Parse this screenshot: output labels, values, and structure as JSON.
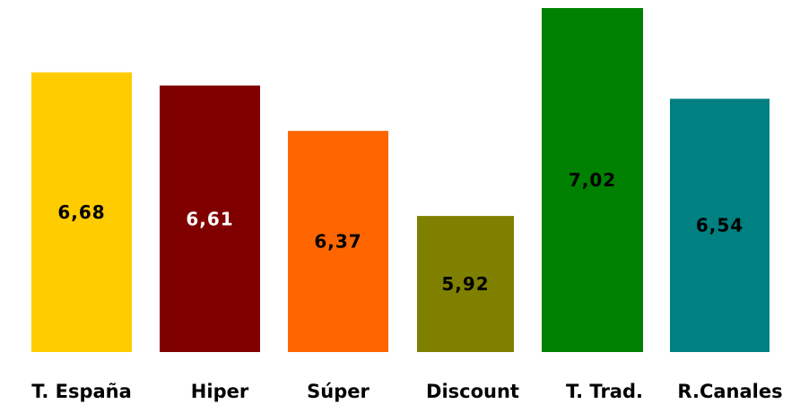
{
  "chart_data": {
    "type": "bar",
    "title": "",
    "xlabel": "",
    "ylabel": "",
    "categories": [
      "T. España",
      "Hiper",
      "Súper",
      "Discount",
      "T. Trad.",
      "R.Canales"
    ],
    "values": [
      6.68,
      6.61,
      6.37,
      5.92,
      7.02,
      6.54
    ],
    "value_labels": [
      "6,68",
      "6,61",
      "6,37",
      "5,92",
      "7,02",
      "6,54"
    ],
    "bar_colors": [
      "#ffcc00",
      "#800000",
      "#ff6600",
      "#808000",
      "#008000",
      "#008080"
    ],
    "value_label_colors": [
      "#000000",
      "#ffffff",
      "#000000",
      "#000000",
      "#000000",
      "#000000"
    ],
    "ylim": [
      5.2,
      7.2
    ],
    "grid": false,
    "legend": "none"
  }
}
